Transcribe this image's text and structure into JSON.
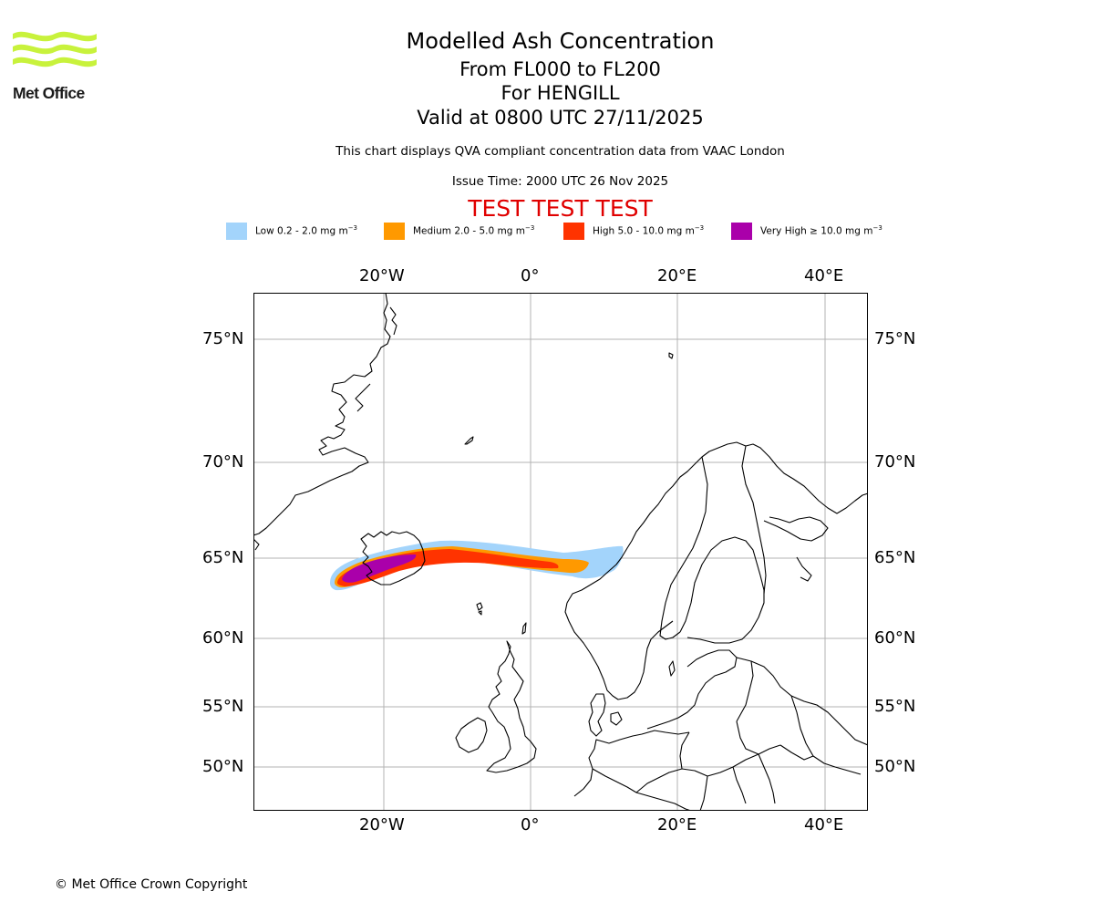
{
  "brand": {
    "name": "Met Office"
  },
  "titles": {
    "line1": "Modelled Ash Concentration",
    "line2": "From FL000 to FL200",
    "line3": "For HENGILL",
    "line4": "Valid at 0800 UTC 27/11/2025"
  },
  "notes": {
    "description": "This chart displays QVA compliant concentration data from VAAC London",
    "issue_time": "Issue Time: 2000 UTC 26 Nov 2025",
    "test_banner": "TEST TEST TEST"
  },
  "legend": [
    {
      "label": "Low 0.2 - 2.0 mg m",
      "unit_exp": "−3",
      "color": "#a3d4fb"
    },
    {
      "label": "Medium 2.0 - 5.0 mg m",
      "unit_exp": "−3",
      "color": "#ff9900"
    },
    {
      "label": "High 5.0 - 10.0 mg m",
      "unit_exp": "−3",
      "color": "#ff3300"
    },
    {
      "label": "Very High  ≥  10.0 mg m",
      "unit_exp": "−3",
      "color": "#aa00aa"
    }
  ],
  "axes": {
    "lon_ticks": [
      "20°W",
      "0°",
      "20°E",
      "40°E"
    ],
    "lat_ticks": [
      "75°N",
      "70°N",
      "65°N",
      "60°N",
      "55°N",
      "50°N"
    ]
  },
  "copyright": "© Met Office Crown Copyright"
}
